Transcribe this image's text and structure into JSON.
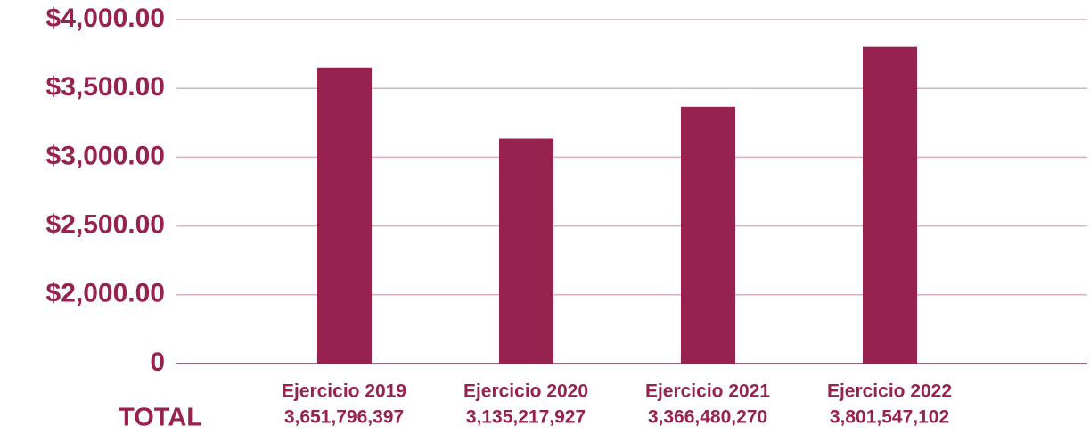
{
  "chart_data": {
    "type": "bar",
    "categories": [
      "Ejercicio 2019",
      "Ejercicio 2020",
      "Ejercicio 2021",
      "Ejercicio 2022"
    ],
    "values": [
      3651.796397,
      3135.217927,
      3366.48027,
      3801.547102
    ],
    "value_labels": [
      "3,651,796,397",
      "3,135,217,927",
      "3,366,480,270",
      "3,801,547,102"
    ],
    "total_label": "TOTAL",
    "color": "#97224f",
    "ylim": [
      0,
      4000
    ],
    "yticks": [
      0,
      {
        "value": 2000,
        "label": "$2,000.00"
      },
      {
        "value": 2500,
        "label": "$2,500.00"
      },
      {
        "value": 3000,
        "label": "$3,000.00"
      },
      {
        "value": 3500,
        "label": "$3,500.00"
      },
      {
        "value": 4000,
        "label": "$4,000.00"
      }
    ],
    "y_scale": "broken",
    "grid": true
  }
}
